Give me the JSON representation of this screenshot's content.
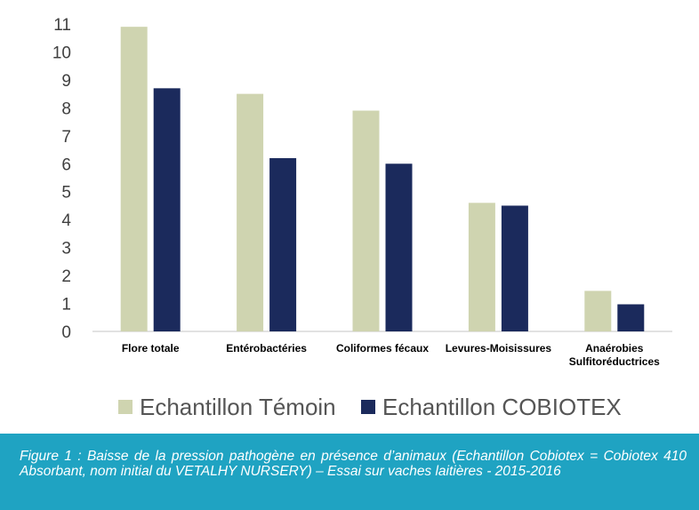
{
  "colors": {
    "temoin": "#cfd4b0",
    "cobiotex": "#1b2a5c",
    "caption_bg": "#1fa3c2",
    "axis": "#d9d9d9"
  },
  "chart_data": {
    "type": "bar",
    "categories": [
      "Flore totale",
      "Entérobactéries",
      "Coliformes fécaux",
      "Levures-Moisissures",
      "Anaérobies Sulfitoréductrices"
    ],
    "category_lines": [
      [
        "Flore totale"
      ],
      [
        "Entérobactéries"
      ],
      [
        "Coliformes fécaux"
      ],
      [
        "Levures-Moisissures"
      ],
      [
        "Anaérobies",
        "Sulfitoréductrices"
      ]
    ],
    "series": [
      {
        "name": "Echantillon Témoin",
        "values": [
          10.9,
          8.5,
          7.9,
          4.6,
          1.45
        ]
      },
      {
        "name": "Echantillon COBIOTEX",
        "values": [
          8.7,
          6.2,
          6.0,
          4.5,
          0.97
        ]
      }
    ],
    "ylim": [
      0,
      11
    ],
    "yticks": [
      "0",
      "1",
      "2",
      "3",
      "4",
      "5",
      "6",
      "7",
      "8",
      "9",
      "10",
      "11"
    ],
    "grid": false,
    "legend_position": "bottom"
  },
  "caption": "Figure 1 : Baisse de la pression pathogène en présence d’animaux (Echantillon Cobiotex = Cobiotex 410 Absorbant, nom initial du VETALHY NURSERY) – Essai sur vaches laitières - 2015-2016"
}
